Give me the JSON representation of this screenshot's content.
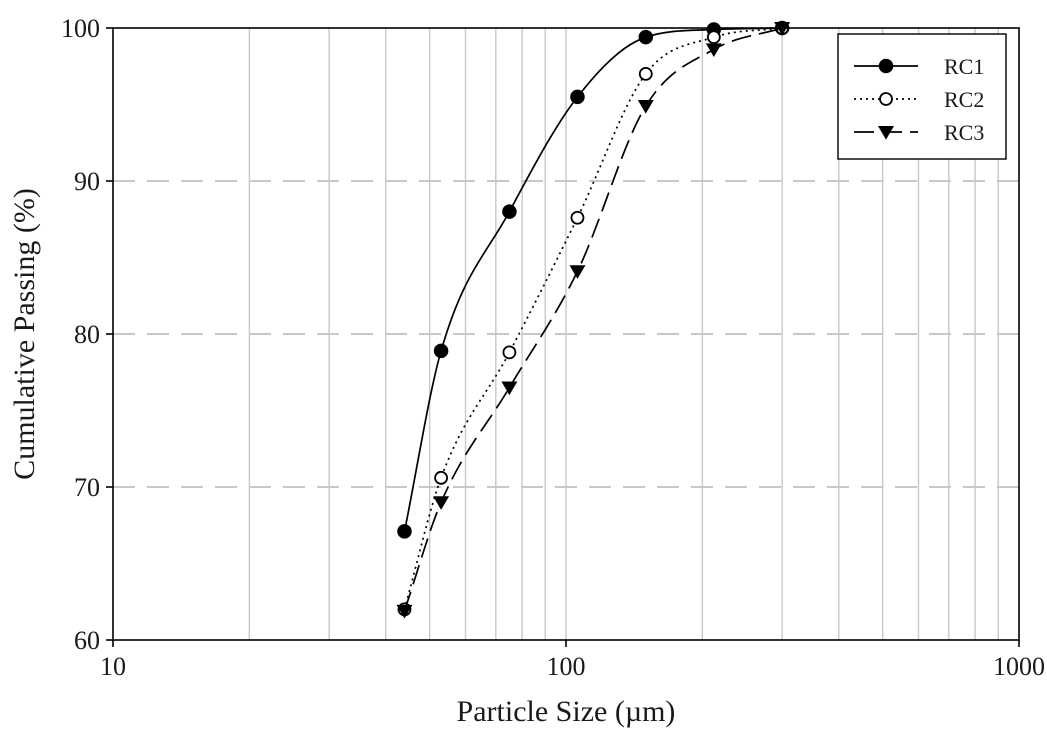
{
  "chart_data": {
    "type": "line",
    "xlabel": "Particle Size (µm)",
    "ylabel": "Cumulative Passing (%)",
    "x_scale": "log",
    "xlim": [
      10,
      1000
    ],
    "ylim": [
      60,
      100
    ],
    "x_ticks": [
      10,
      100,
      1000
    ],
    "x_tick_labels": [
      "10",
      "100",
      "1000"
    ],
    "y_ticks": [
      60,
      70,
      80,
      90,
      100
    ],
    "y_tick_labels": [
      "60",
      "70",
      "80",
      "90",
      "100"
    ],
    "grid": {
      "x_minor_lines": true,
      "y_dashed_lines": true
    },
    "legend_position": "top-right",
    "series": [
      {
        "name": "RC1",
        "line_style": "solid",
        "marker": "filled-circle",
        "color": "#000000",
        "x": [
          44,
          53,
          75,
          106,
          150,
          212,
          300
        ],
        "y": [
          67.1,
          78.9,
          88.0,
          95.5,
          99.4,
          99.9,
          100.0
        ]
      },
      {
        "name": "RC2",
        "line_style": "dotted",
        "marker": "open-circle",
        "color": "#000000",
        "x": [
          44,
          53,
          75,
          106,
          150,
          212,
          300
        ],
        "y": [
          62.0,
          70.6,
          78.8,
          87.6,
          97.0,
          99.4,
          100.0
        ]
      },
      {
        "name": "RC3",
        "line_style": "dashed",
        "marker": "filled-triangle-down",
        "color": "#000000",
        "x": [
          44,
          53,
          75,
          106,
          150,
          212,
          300
        ],
        "y": [
          61.9,
          69.0,
          76.5,
          84.1,
          94.9,
          98.6,
          100.0
        ]
      }
    ]
  }
}
